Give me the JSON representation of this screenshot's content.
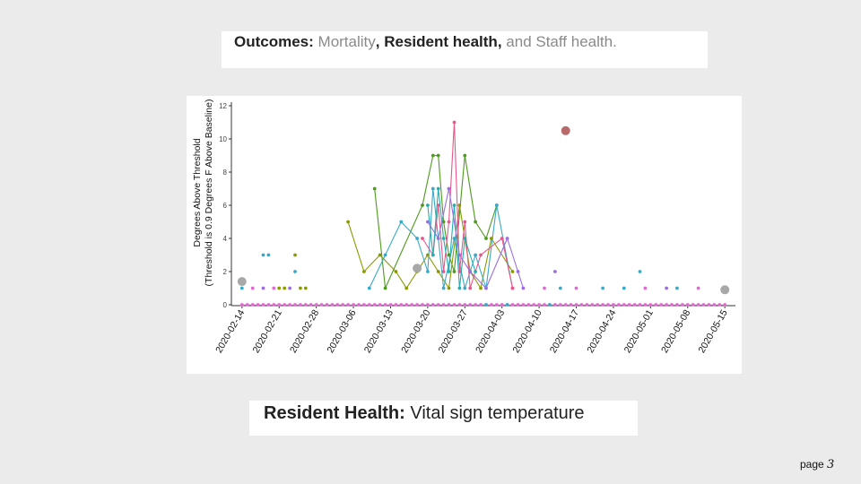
{
  "slide": {
    "title_parts": {
      "lead": "Outcomes:",
      "mortality": "Mortality",
      "comma1": ",",
      "resident": "Resident health,",
      "and_text": "and Staff health",
      "period": "."
    },
    "caption": {
      "lead": "Resident Health:",
      "text": "Vital sign temperature"
    },
    "page": {
      "label": "page",
      "number": "3"
    }
  },
  "colors": {
    "background": "#ebebeb",
    "series": [
      "#e06bd0",
      "#3aa9c9",
      "#4e9a1e",
      "#8a9a00",
      "#9b6fe0",
      "#e8578a",
      "#20b0b0"
    ],
    "outlier_red": "#b86a6a",
    "outlier_grey": "#a8a8a8"
  },
  "chart_data": {
    "type": "scatter",
    "ylabel_line1": "Degrees Above Threshold",
    "ylabel_line2": "(Threshold is 0.9 Degrees F Above Baseline)",
    "ylim": [
      0,
      12
    ],
    "yticks": [
      "0",
      "2",
      "4",
      "6",
      "8",
      "10",
      "12"
    ],
    "xlim": [
      "2020-02-12",
      "2020-05-17"
    ],
    "xticks": [
      "2020-02-14",
      "2020-02-21",
      "2020-02-28",
      "2020-03-06",
      "2020-03-13",
      "2020-03-20",
      "2020-03-27",
      "2020-04-03",
      "2020-04-10",
      "2020-04-17",
      "2020-04-24",
      "2020-05-01",
      "2020-05-08",
      "2020-05-15"
    ],
    "zero_line": {
      "start": "2020-02-14",
      "end": "2020-05-15",
      "value": 0
    },
    "series": [
      {
        "color": "#4e9a1e",
        "lines": true,
        "points": [
          [
            "2020-03-10",
            7
          ],
          [
            "2020-03-12",
            1
          ],
          [
            "2020-03-19",
            6
          ],
          [
            "2020-03-21",
            9
          ],
          [
            "2020-03-22",
            9
          ],
          [
            "2020-03-23",
            5
          ],
          [
            "2020-03-24",
            3
          ],
          [
            "2020-03-25",
            2
          ],
          [
            "2020-03-27",
            9
          ],
          [
            "2020-03-29",
            5
          ],
          [
            "2020-03-31",
            4
          ],
          [
            "2020-04-02",
            6
          ]
        ]
      },
      {
        "color": "#8a9a00",
        "lines": true,
        "points": [
          [
            "2020-03-05",
            5
          ],
          [
            "2020-03-08",
            2
          ],
          [
            "2020-03-11",
            3
          ],
          [
            "2020-03-14",
            2
          ],
          [
            "2020-03-16",
            1
          ],
          [
            "2020-03-18",
            2
          ],
          [
            "2020-03-20",
            3
          ],
          [
            "2020-03-22",
            2
          ],
          [
            "2020-03-24",
            1
          ],
          [
            "2020-03-26",
            6
          ],
          [
            "2020-03-28",
            2
          ],
          [
            "2020-03-30",
            1
          ],
          [
            "2020-04-01",
            4
          ],
          [
            "2020-04-05",
            2
          ]
        ]
      },
      {
        "color": "#3aa9c9",
        "lines": true,
        "points": [
          [
            "2020-03-09",
            1
          ],
          [
            "2020-03-12",
            3
          ],
          [
            "2020-03-15",
            5
          ],
          [
            "2020-03-18",
            4
          ],
          [
            "2020-03-20",
            2
          ],
          [
            "2020-03-21",
            7
          ],
          [
            "2020-03-23",
            1
          ],
          [
            "2020-03-25",
            4
          ],
          [
            "2020-03-27",
            1
          ],
          [
            "2020-03-29",
            3
          ],
          [
            "2020-03-31",
            1
          ],
          [
            "2020-04-02",
            6
          ],
          [
            "2020-04-05",
            1
          ]
        ]
      },
      {
        "color": "#e8578a",
        "lines": true,
        "points": [
          [
            "2020-03-19",
            4
          ],
          [
            "2020-03-21",
            3
          ],
          [
            "2020-03-22",
            6
          ],
          [
            "2020-03-23",
            2
          ],
          [
            "2020-03-24",
            5
          ],
          [
            "2020-03-25",
            11
          ],
          [
            "2020-03-26",
            2
          ],
          [
            "2020-03-27",
            5
          ],
          [
            "2020-03-28",
            1
          ],
          [
            "2020-03-30",
            3
          ],
          [
            "2020-04-03",
            4
          ],
          [
            "2020-04-05",
            1
          ]
        ]
      },
      {
        "color": "#20b0b0",
        "lines": true,
        "points": [
          [
            "2020-03-20",
            6
          ],
          [
            "2020-03-21",
            3
          ],
          [
            "2020-03-22",
            7
          ],
          [
            "2020-03-23",
            4
          ],
          [
            "2020-03-24",
            2
          ],
          [
            "2020-03-25",
            6
          ],
          [
            "2020-03-26",
            1
          ],
          [
            "2020-03-27",
            4
          ],
          [
            "2020-03-29",
            2
          ]
        ]
      },
      {
        "color": "#9b6fe0",
        "lines": true,
        "points": [
          [
            "2020-03-20",
            5
          ],
          [
            "2020-03-22",
            4
          ],
          [
            "2020-03-24",
            7
          ],
          [
            "2020-03-26",
            3
          ],
          [
            "2020-03-28",
            2
          ],
          [
            "2020-03-31",
            1
          ],
          [
            "2020-04-04",
            4
          ],
          [
            "2020-04-06",
            2
          ],
          [
            "2020-04-07",
            1
          ]
        ]
      },
      {
        "color": "#e06bd0",
        "lines": false,
        "points": [
          [
            "2020-02-14",
            0
          ],
          [
            "2020-02-15",
            0
          ],
          [
            "2020-02-16",
            0
          ],
          [
            "2020-02-17",
            0
          ],
          [
            "2020-02-18",
            0
          ],
          [
            "2020-02-19",
            0
          ],
          [
            "2020-02-20",
            0
          ],
          [
            "2020-02-21",
            0
          ],
          [
            "2020-02-22",
            0
          ],
          [
            "2020-02-23",
            0
          ],
          [
            "2020-02-24",
            0
          ],
          [
            "2020-02-25",
            0
          ],
          [
            "2020-02-26",
            0
          ],
          [
            "2020-02-27",
            0
          ],
          [
            "2020-02-28",
            0
          ],
          [
            "2020-02-29",
            0
          ],
          [
            "2020-03-01",
            0
          ],
          [
            "2020-03-02",
            0
          ],
          [
            "2020-03-03",
            0
          ],
          [
            "2020-03-04",
            0
          ],
          [
            "2020-03-05",
            0
          ],
          [
            "2020-03-06",
            0
          ],
          [
            "2020-03-07",
            0
          ],
          [
            "2020-03-08",
            0
          ],
          [
            "2020-03-09",
            0
          ],
          [
            "2020-03-10",
            0
          ],
          [
            "2020-03-11",
            0
          ],
          [
            "2020-03-12",
            0
          ],
          [
            "2020-03-13",
            0
          ],
          [
            "2020-03-14",
            0
          ],
          [
            "2020-03-15",
            0
          ],
          [
            "2020-03-16",
            0
          ],
          [
            "2020-03-17",
            0
          ],
          [
            "2020-03-18",
            0
          ],
          [
            "2020-03-19",
            0
          ],
          [
            "2020-03-20",
            0
          ],
          [
            "2020-03-21",
            0
          ],
          [
            "2020-03-22",
            0
          ],
          [
            "2020-03-23",
            0
          ],
          [
            "2020-03-24",
            0
          ],
          [
            "2020-03-25",
            0
          ],
          [
            "2020-03-26",
            0
          ],
          [
            "2020-03-27",
            0
          ],
          [
            "2020-03-28",
            0
          ],
          [
            "2020-03-29",
            0
          ],
          [
            "2020-03-30",
            0
          ],
          [
            "2020-03-31",
            0
          ],
          [
            "2020-04-01",
            0
          ],
          [
            "2020-04-02",
            0
          ],
          [
            "2020-04-03",
            0
          ],
          [
            "2020-04-04",
            0
          ],
          [
            "2020-04-05",
            0
          ],
          [
            "2020-04-06",
            0
          ],
          [
            "2020-04-07",
            0
          ],
          [
            "2020-04-08",
            0
          ],
          [
            "2020-04-09",
            0
          ],
          [
            "2020-04-10",
            0
          ],
          [
            "2020-04-11",
            0
          ],
          [
            "2020-04-12",
            0
          ],
          [
            "2020-04-13",
            0
          ],
          [
            "2020-04-14",
            0
          ],
          [
            "2020-04-15",
            0
          ],
          [
            "2020-04-16",
            0
          ],
          [
            "2020-04-17",
            0
          ],
          [
            "2020-04-18",
            0
          ],
          [
            "2020-04-19",
            0
          ],
          [
            "2020-04-20",
            0
          ],
          [
            "2020-04-21",
            0
          ],
          [
            "2020-04-22",
            0
          ],
          [
            "2020-04-23",
            0
          ],
          [
            "2020-04-24",
            0
          ],
          [
            "2020-04-25",
            0
          ],
          [
            "2020-04-26",
            0
          ],
          [
            "2020-04-27",
            0
          ],
          [
            "2020-04-28",
            0
          ],
          [
            "2020-04-29",
            0
          ],
          [
            "2020-04-30",
            0
          ],
          [
            "2020-05-01",
            0
          ],
          [
            "2020-05-02",
            0
          ],
          [
            "2020-05-03",
            0
          ],
          [
            "2020-05-04",
            0
          ],
          [
            "2020-05-05",
            0
          ],
          [
            "2020-05-06",
            0
          ],
          [
            "2020-05-07",
            0
          ],
          [
            "2020-05-08",
            0
          ],
          [
            "2020-05-09",
            0
          ],
          [
            "2020-05-10",
            0
          ],
          [
            "2020-05-11",
            0
          ],
          [
            "2020-05-12",
            0
          ],
          [
            "2020-05-13",
            0
          ],
          [
            "2020-05-14",
            0
          ],
          [
            "2020-05-15",
            0
          ]
        ]
      },
      {
        "color": "#3aa9c9",
        "lines": false,
        "points": [
          [
            "2020-02-18",
            3
          ],
          [
            "2020-02-19",
            3
          ],
          [
            "2020-02-24",
            2
          ],
          [
            "2020-02-14",
            1
          ],
          [
            "2020-04-14",
            1
          ],
          [
            "2020-04-22",
            1
          ],
          [
            "2020-04-26",
            1
          ],
          [
            "2020-04-29",
            2
          ],
          [
            "2020-05-06",
            1
          ],
          [
            "2020-03-31",
            0
          ],
          [
            "2020-04-04",
            0
          ],
          [
            "2020-04-12",
            0
          ]
        ]
      },
      {
        "color": "#e06bd0",
        "lines": false,
        "points": [
          [
            "2020-02-16",
            1
          ],
          [
            "2020-02-20",
            1
          ],
          [
            "2020-04-11",
            1
          ],
          [
            "2020-04-17",
            1
          ],
          [
            "2020-04-30",
            1
          ],
          [
            "2020-05-10",
            1
          ]
        ]
      },
      {
        "color": "#8a9a00",
        "lines": false,
        "points": [
          [
            "2020-02-24",
            3
          ],
          [
            "2020-02-21",
            1
          ],
          [
            "2020-02-22",
            1
          ],
          [
            "2020-02-25",
            1
          ],
          [
            "2020-02-26",
            1
          ]
        ]
      },
      {
        "color": "#9b6fe0",
        "lines": false,
        "points": [
          [
            "2020-02-18",
            1
          ],
          [
            "2020-02-23",
            1
          ],
          [
            "2020-04-13",
            2
          ],
          [
            "2020-05-04",
            1
          ]
        ]
      }
    ],
    "highlight_points": [
      {
        "x": "2020-02-14",
        "y": 1.4,
        "color": "#a8a8a8"
      },
      {
        "x": "2020-03-18",
        "y": 2.2,
        "color": "#a8a8a8"
      },
      {
        "x": "2020-04-15",
        "y": 10.5,
        "color": "#b86a6a"
      },
      {
        "x": "2020-05-15",
        "y": 0.9,
        "color": "#a8a8a8"
      }
    ]
  }
}
